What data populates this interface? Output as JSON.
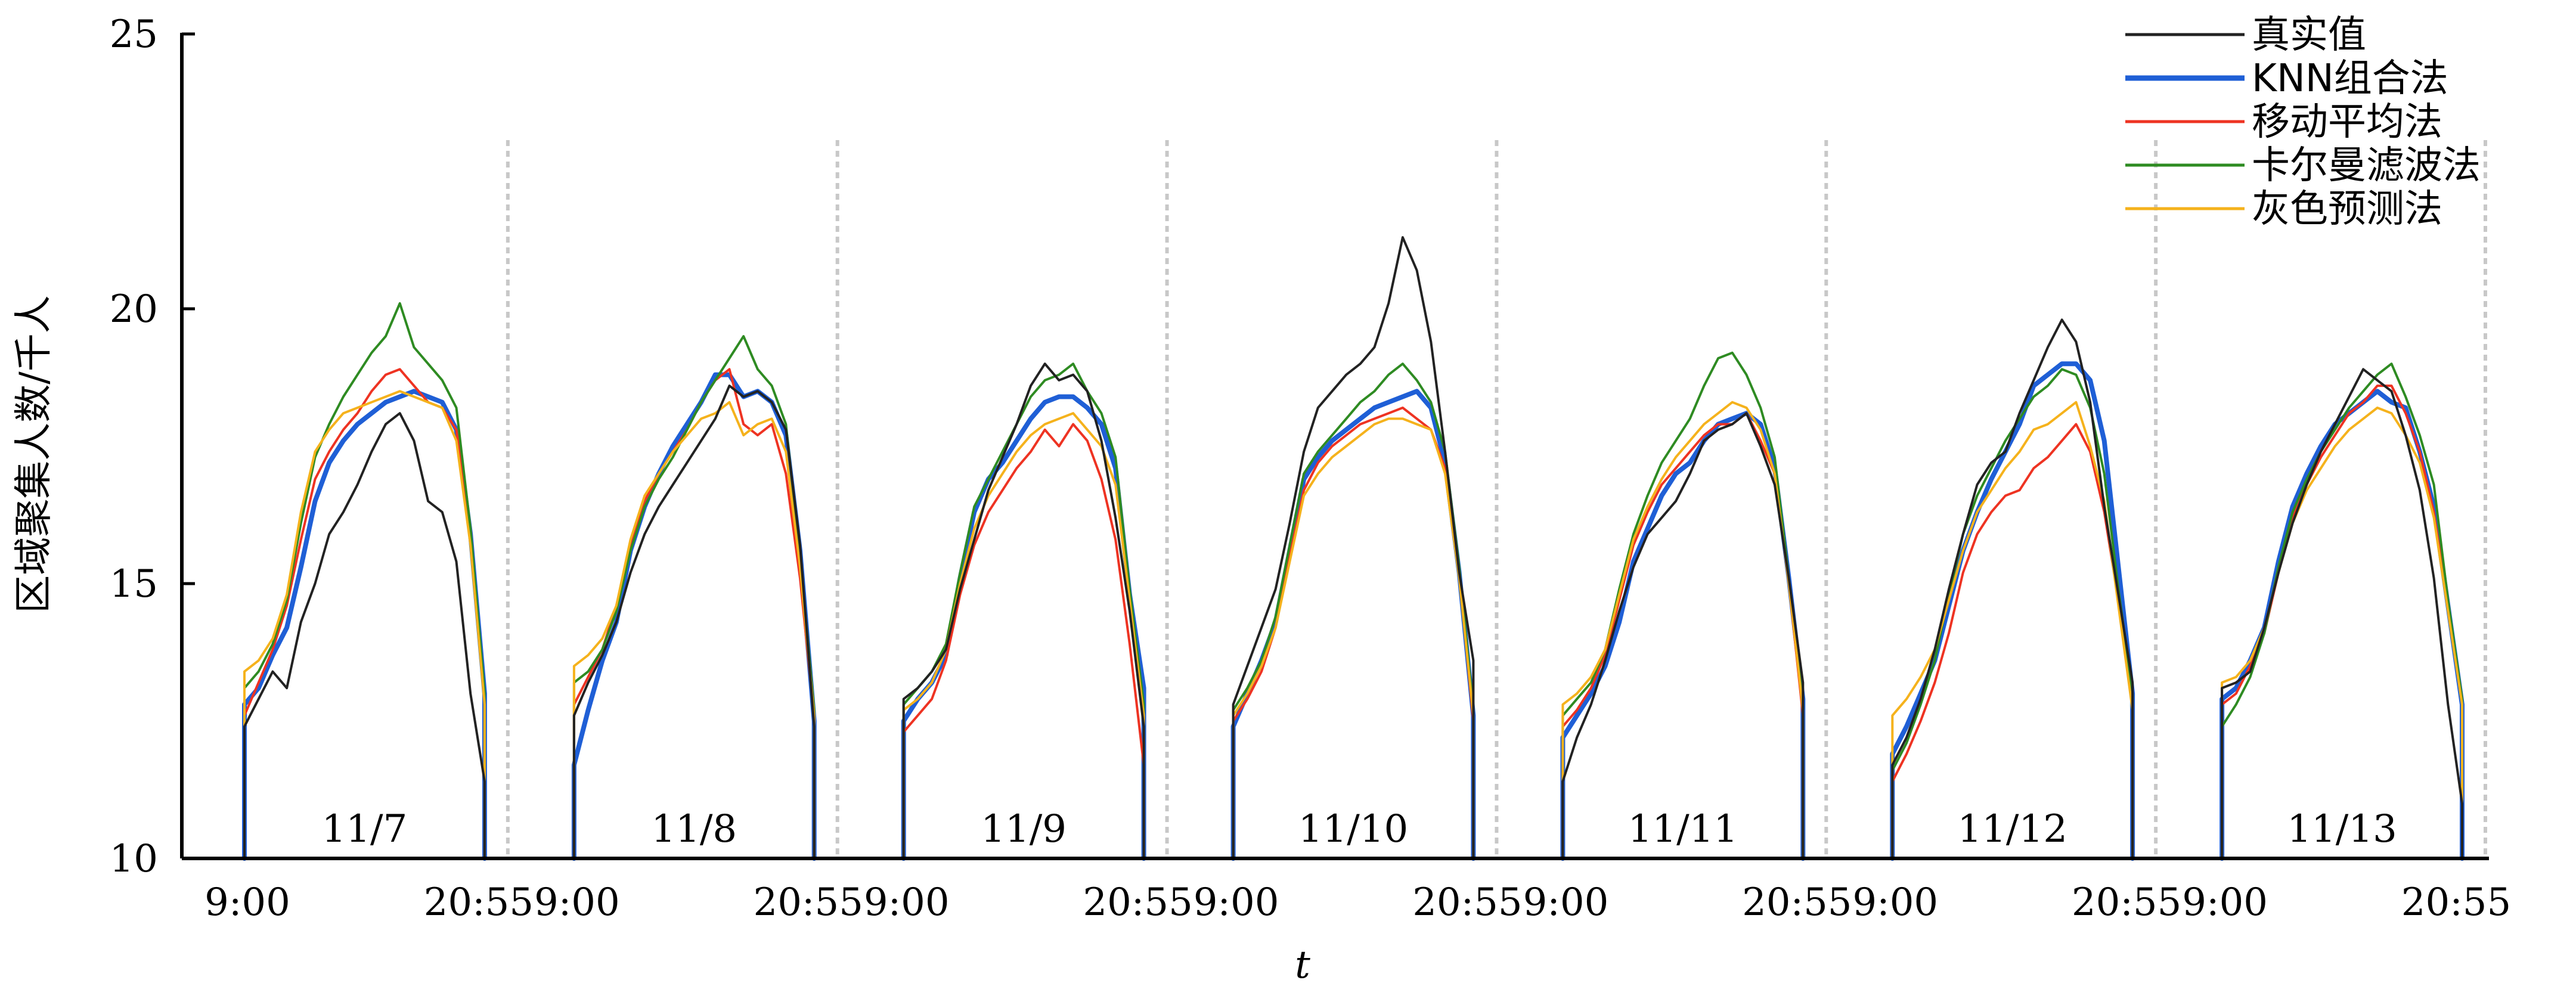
{
  "chart_data": {
    "type": "line",
    "ylabel": "区域聚集人数/千人",
    "xlabel": "t",
    "ylim": [
      10,
      25
    ],
    "yticks": [
      10,
      15,
      20,
      25
    ],
    "days": [
      "11/7",
      "11/8",
      "11/9",
      "11/10",
      "11/11",
      "11/12",
      "11/13"
    ],
    "time_ticks": [
      "9:00",
      "20:55"
    ],
    "legend_position": "top-right",
    "series": [
      {
        "name": "真实值",
        "color": "#222222",
        "values": [
          [
            12.4,
            12.9,
            13.4,
            13.1,
            14.3,
            15.0,
            15.9,
            16.3,
            16.8,
            17.4,
            17.9,
            18.1,
            17.6,
            16.5,
            16.3,
            15.4,
            13.0,
            11.4
          ],
          [
            12.6,
            13.2,
            13.7,
            14.3,
            15.2,
            15.9,
            16.4,
            16.8,
            17.2,
            17.6,
            18.0,
            18.6,
            18.4,
            18.5,
            18.3,
            17.8,
            15.7,
            12.4
          ],
          [
            12.9,
            13.1,
            13.4,
            13.8,
            14.9,
            15.8,
            16.7,
            17.3,
            17.9,
            18.6,
            19.0,
            18.7,
            18.8,
            18.5,
            17.6,
            16.2,
            14.5,
            12.4
          ],
          [
            12.8,
            13.5,
            14.2,
            14.9,
            16.1,
            17.4,
            18.2,
            18.5,
            18.8,
            19.0,
            19.3,
            20.1,
            21.3,
            20.7,
            19.4,
            17.4,
            15.2,
            13.6
          ],
          [
            11.4,
            12.2,
            12.8,
            13.6,
            14.5,
            15.3,
            15.9,
            16.2,
            16.5,
            17.0,
            17.6,
            17.8,
            17.9,
            18.1,
            17.5,
            16.8,
            15.1,
            13.2
          ],
          [
            11.7,
            12.2,
            12.9,
            13.8,
            14.9,
            15.9,
            16.8,
            17.2,
            17.4,
            18.1,
            18.7,
            19.3,
            19.8,
            19.4,
            18.3,
            16.4,
            14.8,
            13.2
          ],
          [
            13.1,
            13.2,
            13.4,
            14.2,
            15.2,
            16.1,
            16.8,
            17.4,
            17.9,
            18.4,
            18.9,
            18.7,
            18.5,
            17.7,
            16.7,
            15.1,
            12.8,
            11.0
          ]
        ]
      },
      {
        "name": "KNN组合法",
        "color": "#1f5fd6",
        "values": [
          [
            12.8,
            13.1,
            13.7,
            14.2,
            15.3,
            16.5,
            17.2,
            17.6,
            17.9,
            18.1,
            18.3,
            18.4,
            18.5,
            18.4,
            18.3,
            17.8,
            15.9,
            13.0
          ],
          [
            11.7,
            12.7,
            13.6,
            14.3,
            15.6,
            16.4,
            17.0,
            17.5,
            17.9,
            18.3,
            18.8,
            18.8,
            18.4,
            18.5,
            18.3,
            17.7,
            15.6,
            12.5
          ],
          [
            12.5,
            12.9,
            13.2,
            13.7,
            15.1,
            16.3,
            16.9,
            17.2,
            17.6,
            18.0,
            18.3,
            18.4,
            18.4,
            18.2,
            17.9,
            17.1,
            14.8,
            13.1
          ],
          [
            12.4,
            13.0,
            13.6,
            14.3,
            15.6,
            16.9,
            17.3,
            17.6,
            17.8,
            18.0,
            18.2,
            18.3,
            18.4,
            18.5,
            18.2,
            17.2,
            15.2,
            12.6
          ],
          [
            12.2,
            12.6,
            13.0,
            13.5,
            14.3,
            15.4,
            16.0,
            16.6,
            17.0,
            17.2,
            17.6,
            17.9,
            18.0,
            18.1,
            17.9,
            17.1,
            15.1,
            12.9
          ],
          [
            11.9,
            12.4,
            13.0,
            13.6,
            14.6,
            15.6,
            16.3,
            16.9,
            17.4,
            17.9,
            18.6,
            18.8,
            19.0,
            19.0,
            18.7,
            17.6,
            15.3,
            13.0
          ],
          [
            12.9,
            13.1,
            13.6,
            14.2,
            15.4,
            16.4,
            17.0,
            17.5,
            17.9,
            18.1,
            18.3,
            18.5,
            18.3,
            18.2,
            17.4,
            16.4,
            14.6,
            12.8
          ]
        ]
      },
      {
        "name": "移动平均法",
        "color": "#ee3322",
        "values": [
          [
            12.6,
            13.2,
            13.8,
            14.6,
            15.8,
            16.9,
            17.4,
            17.8,
            18.1,
            18.5,
            18.8,
            18.9,
            18.6,
            18.3,
            18.2,
            17.8,
            16.0,
            12.9
          ],
          [
            12.8,
            13.3,
            13.8,
            14.6,
            15.7,
            16.5,
            17.0,
            17.4,
            17.8,
            18.3,
            18.7,
            18.9,
            17.9,
            17.7,
            17.9,
            17.0,
            15.1,
            12.6
          ],
          [
            12.3,
            12.6,
            12.9,
            13.6,
            14.8,
            15.7,
            16.3,
            16.7,
            17.1,
            17.4,
            17.8,
            17.5,
            17.9,
            17.6,
            16.9,
            15.8,
            13.9,
            11.7
          ],
          [
            12.5,
            12.9,
            13.4,
            14.2,
            15.5,
            16.7,
            17.2,
            17.5,
            17.7,
            17.9,
            18.0,
            18.1,
            18.2,
            18.0,
            17.8,
            17.1,
            15.2,
            12.5
          ],
          [
            12.4,
            12.7,
            13.1,
            13.7,
            14.7,
            15.7,
            16.3,
            16.8,
            17.1,
            17.4,
            17.7,
            17.9,
            17.9,
            18.1,
            17.6,
            17.0,
            15.0,
            12.6
          ],
          [
            11.4,
            11.9,
            12.5,
            13.2,
            14.1,
            15.2,
            15.9,
            16.3,
            16.6,
            16.7,
            17.1,
            17.3,
            17.6,
            17.9,
            17.4,
            16.3,
            14.7,
            12.8
          ],
          [
            12.8,
            13.0,
            13.5,
            14.1,
            15.2,
            16.2,
            16.8,
            17.3,
            17.7,
            18.1,
            18.3,
            18.6,
            18.6,
            18.1,
            17.4,
            16.3,
            14.6,
            12.9
          ]
        ]
      },
      {
        "name": "卡尔曼滤波法",
        "color": "#2e8b22",
        "values": [
          [
            13.1,
            13.4,
            13.9,
            14.7,
            16.1,
            17.3,
            17.9,
            18.4,
            18.8,
            19.2,
            19.5,
            20.1,
            19.3,
            19.0,
            18.7,
            18.2,
            16.0,
            13.0
          ],
          [
            13.2,
            13.4,
            13.8,
            14.5,
            15.6,
            16.4,
            16.9,
            17.3,
            17.8,
            18.3,
            18.7,
            19.1,
            19.5,
            18.9,
            18.6,
            17.9,
            15.5,
            12.7
          ],
          [
            12.8,
            13.1,
            13.4,
            13.9,
            15.2,
            16.4,
            16.9,
            17.4,
            17.9,
            18.4,
            18.7,
            18.8,
            19.0,
            18.5,
            18.1,
            17.3,
            14.9,
            12.8
          ],
          [
            12.7,
            13.1,
            13.6,
            14.4,
            15.7,
            17.0,
            17.4,
            17.7,
            18.0,
            18.3,
            18.5,
            18.8,
            19.0,
            18.7,
            18.3,
            17.4,
            15.3,
            12.7
          ],
          [
            12.6,
            12.9,
            13.2,
            13.8,
            14.9,
            15.9,
            16.6,
            17.2,
            17.6,
            18.0,
            18.6,
            19.1,
            19.2,
            18.8,
            18.2,
            17.3,
            15.1,
            12.8
          ],
          [
            11.6,
            12.1,
            12.8,
            13.6,
            14.8,
            15.9,
            16.6,
            17.1,
            17.6,
            18.0,
            18.4,
            18.6,
            18.9,
            18.8,
            18.2,
            17.0,
            14.9,
            13.0
          ],
          [
            12.4,
            12.8,
            13.3,
            14.1,
            15.3,
            16.3,
            16.9,
            17.4,
            17.8,
            18.2,
            18.5,
            18.8,
            19.0,
            18.4,
            17.7,
            16.8,
            14.7,
            12.9
          ]
        ]
      },
      {
        "name": "灰色预测法",
        "color": "#f5b21c",
        "values": [
          [
            13.4,
            13.6,
            14.0,
            14.8,
            16.3,
            17.4,
            17.8,
            18.1,
            18.2,
            18.3,
            18.4,
            18.5,
            18.4,
            18.3,
            18.2,
            17.6,
            15.7,
            12.8
          ],
          [
            13.5,
            13.7,
            14.0,
            14.6,
            15.8,
            16.6,
            17.0,
            17.4,
            17.7,
            18.0,
            18.1,
            18.3,
            17.7,
            17.9,
            18.0,
            17.4,
            15.3,
            12.6
          ],
          [
            12.7,
            12.9,
            13.2,
            13.8,
            15.0,
            16.0,
            16.6,
            17.0,
            17.4,
            17.7,
            17.9,
            18.0,
            18.1,
            17.8,
            17.5,
            16.8,
            14.7,
            12.6
          ],
          [
            12.6,
            13.0,
            13.5,
            14.2,
            15.4,
            16.6,
            17.0,
            17.3,
            17.5,
            17.7,
            17.9,
            18.0,
            18.0,
            17.9,
            17.8,
            17.0,
            15.1,
            12.6
          ],
          [
            12.8,
            13.0,
            13.3,
            13.8,
            14.8,
            15.8,
            16.4,
            16.9,
            17.3,
            17.6,
            17.9,
            18.1,
            18.3,
            18.2,
            17.8,
            17.0,
            15.0,
            12.7
          ],
          [
            12.6,
            12.9,
            13.3,
            13.8,
            14.7,
            15.6,
            16.3,
            16.7,
            17.1,
            17.4,
            17.8,
            17.9,
            18.1,
            18.3,
            17.5,
            16.5,
            14.6,
            12.7
          ],
          [
            13.2,
            13.3,
            13.6,
            14.2,
            15.2,
            16.1,
            16.7,
            17.1,
            17.5,
            17.8,
            18.0,
            18.2,
            18.1,
            17.7,
            17.2,
            16.2,
            14.5,
            12.8
          ]
        ]
      }
    ]
  }
}
